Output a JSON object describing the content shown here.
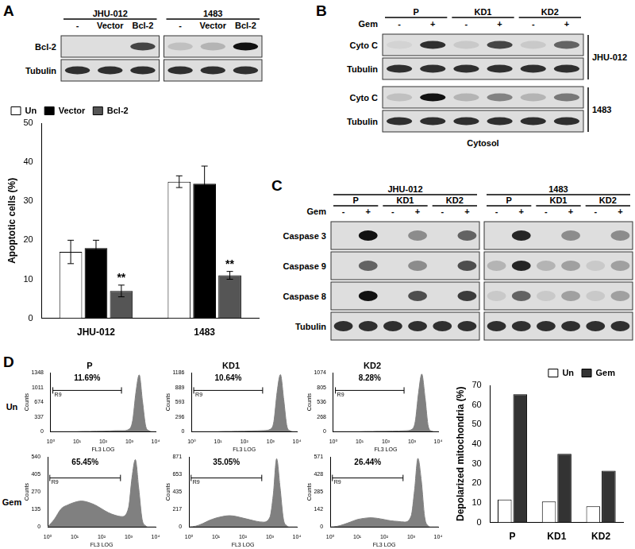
{
  "panel_labels": [
    "A",
    "B",
    "C",
    "D"
  ],
  "blots": [
    {
      "boxes": [
        3,
        3
      ],
      "header": [
        {
          "cells": [
            {
              "text": "JHU-012",
              "span": 3
            },
            {
              "text": "1483",
              "span": 3
            }
          ]
        },
        {
          "cells": [
            {
              "text": "-",
              "span": 1
            },
            {
              "text": "Vector",
              "span": 1
            },
            {
              "text": "Bcl-2",
              "span": 1
            },
            {
              "text": "-",
              "span": 1
            },
            {
              "text": "Vector",
              "span": 1
            },
            {
              "text": "Bcl-2",
              "span": 1
            }
          ]
        }
      ],
      "sections": [
        {
          "rows": [
            {
              "label": "Bcl-2",
              "intensity": [
                0,
                0,
                0.75,
                0.15,
                0.2,
                1
              ]
            },
            {
              "label": "Tubulin",
              "intensity": [
                0.85,
                0.85,
                0.85,
                0.85,
                0.85,
                0.85
              ]
            }
          ]
        }
      ]
    },
    {
      "boxes": [
        6
      ],
      "header": [
        {
          "cells": [
            {
              "text": "P",
              "span": 2
            },
            {
              "text": "KD1",
              "span": 2
            },
            {
              "text": "KD2",
              "span": 2
            }
          ]
        },
        {
          "label": "Gem",
          "cells": [
            {
              "text": "-",
              "span": 1
            },
            {
              "text": "+",
              "span": 1
            },
            {
              "text": "-",
              "span": 1
            },
            {
              "text": "+",
              "span": 1
            },
            {
              "text": "-",
              "span": 1
            },
            {
              "text": "+",
              "span": 1
            }
          ]
        }
      ],
      "sections": [
        {
          "side_label": "JHU-012",
          "rows": [
            {
              "label": "Cyto C",
              "intensity": [
                0.05,
                0.85,
                0.1,
                0.75,
                0.1,
                0.6
              ]
            },
            {
              "label": "Tubulin",
              "intensity": [
                0.85,
                0.85,
                0.85,
                0.85,
                0.85,
                0.85
              ]
            }
          ]
        },
        {
          "side_label": "1483",
          "rows": [
            {
              "label": "Cyto C",
              "intensity": [
                0.15,
                1,
                0.2,
                0.45,
                0.2,
                0.5
              ]
            },
            {
              "label": "Tubulin",
              "intensity": [
                0.85,
                0.85,
                0.85,
                0.85,
                0.85,
                0.85
              ]
            }
          ]
        }
      ],
      "footer": "Cytosol"
    },
    {
      "boxes": [
        6,
        6
      ],
      "header": [
        {
          "cells": [
            {
              "text": "JHU-012",
              "span": 6
            },
            {
              "text": "1483",
              "span": 6
            }
          ]
        },
        {
          "cells": [
            {
              "text": "P",
              "span": 2
            },
            {
              "text": "KD1",
              "span": 2
            },
            {
              "text": "KD2",
              "span": 2
            },
            {
              "text": "P",
              "span": 2
            },
            {
              "text": "KD1",
              "span": 2
            },
            {
              "text": "KD2",
              "span": 2
            }
          ]
        },
        {
          "label": "Gem",
          "cells": [
            {
              "text": "-",
              "span": 1
            },
            {
              "text": "+",
              "span": 1
            },
            {
              "text": "-",
              "span": 1
            },
            {
              "text": "+",
              "span": 1
            },
            {
              "text": "-",
              "span": 1
            },
            {
              "text": "+",
              "span": 1
            },
            {
              "text": "-",
              "span": 1
            },
            {
              "text": "+",
              "span": 1
            },
            {
              "text": "-",
              "span": 1
            },
            {
              "text": "+",
              "span": 1
            },
            {
              "text": "-",
              "span": 1
            },
            {
              "text": "+",
              "span": 1
            }
          ]
        }
      ],
      "sections": [
        {
          "rows": [
            {
              "label": "Caspase 3",
              "intensity": [
                0,
                1,
                0,
                0.4,
                0,
                0.6,
                0,
                0.9,
                0,
                0.4,
                0,
                0.4
              ]
            },
            {
              "label": "Caspase 9",
              "intensity": [
                0,
                0.6,
                0,
                0.4,
                0,
                0.7,
                0.2,
                0.9,
                0.2,
                0.3,
                0.1,
                0.3
              ]
            },
            {
              "label": "Caspase 8",
              "intensity": [
                0,
                1,
                0,
                0.7,
                0,
                0.8,
                0.1,
                0.6,
                0.1,
                0.3,
                0.1,
                0.3
              ]
            },
            {
              "label": "Tubulin",
              "intensity": [
                0.85,
                0.85,
                0.85,
                0.85,
                0.85,
                0.85,
                0.85,
                0.85,
                0.85,
                0.85,
                0.85,
                0.85
              ]
            }
          ]
        }
      ]
    }
  ],
  "flow_row_labels": [
    "Un",
    "Gem"
  ],
  "chart_data": [
    {
      "type": "bar",
      "y_label": "Apoptotic cells (%)",
      "categories": [
        "JHU-012",
        "1483"
      ],
      "series": [
        {
          "name": "Un",
          "color": "#ffffff",
          "values": [
            17,
            35
          ],
          "errors": [
            3,
            1.5
          ]
        },
        {
          "name": "Vector",
          "color": "#000000",
          "values": [
            18,
            34.5
          ],
          "errors": [
            2,
            4.5
          ]
        },
        {
          "name": "Bcl-2",
          "color": "#555555",
          "values": [
            7,
            11
          ],
          "errors": [
            1.5,
            1
          ]
        }
      ],
      "annotations": [
        {
          "text": "**",
          "category": "JHU-012",
          "series": "Bcl-2"
        },
        {
          "text": "**",
          "category": "1483",
          "series": "Bcl-2"
        }
      ],
      "ylim": [
        0,
        50
      ],
      "yticks": [
        0,
        10,
        20,
        30,
        40,
        50
      ],
      "grid": false,
      "legend": "upper left"
    },
    {
      "type": "area",
      "title": "P",
      "annotation": "11.69%",
      "x_label": "FL3 LOG",
      "y_label": "Counts",
      "log": "x",
      "grid": false,
      "color": "#808080",
      "gate": {
        "label": "R9",
        "range": [
          1.2,
          500
        ]
      },
      "x": [
        1,
        1.78,
        3.16,
        5.62,
        10,
        17.8,
        31.6,
        56.2,
        100,
        178,
        316,
        562,
        1000,
        1334,
        1778,
        2371,
        3162,
        4217,
        5623,
        7499,
        10000
      ],
      "values": [
        0,
        0,
        0,
        0,
        0,
        5,
        5,
        8,
        10,
        15,
        20,
        20,
        60,
        250,
        900,
        1300,
        700,
        120,
        20,
        0,
        0
      ],
      "xlim": [
        1,
        10000
      ],
      "xticks": [
        {
          "value": 1,
          "label": "10⁰"
        },
        {
          "value": 10,
          "label": "10¹"
        },
        {
          "value": 100,
          "label": "10²"
        },
        {
          "value": 1000,
          "label": "10³"
        },
        {
          "value": 10000,
          "label": "10⁴"
        }
      ],
      "ylim": [
        0,
        1348
      ],
      "yticks": [
        0,
        337,
        674,
        1011,
        1348
      ]
    },
    {
      "type": "area",
      "title": "KD1",
      "annotation": "10.64%",
      "x_label": "FL3 LOG",
      "y_label": "Counts",
      "log": "x",
      "grid": false,
      "color": "#808080",
      "gate": {
        "label": "R9",
        "range": [
          1.2,
          500
        ]
      },
      "x": [
        1,
        1.78,
        3.16,
        5.62,
        10,
        17.8,
        31.6,
        56.2,
        100,
        178,
        316,
        562,
        1000,
        1334,
        1778,
        2371,
        3162,
        4217,
        5623,
        7499,
        10000
      ],
      "values": [
        0,
        0,
        0,
        0,
        0,
        4,
        4,
        6,
        8,
        12,
        15,
        20,
        50,
        200,
        800,
        1150,
        650,
        100,
        15,
        0,
        0
      ],
      "xlim": [
        1,
        10000
      ],
      "xticks": [
        {
          "value": 1,
          "label": "10⁰"
        },
        {
          "value": 10,
          "label": "10¹"
        },
        {
          "value": 100,
          "label": "10²"
        },
        {
          "value": 1000,
          "label": "10³"
        },
        {
          "value": 10000,
          "label": "10⁴"
        }
      ],
      "ylim": [
        0,
        1186
      ],
      "yticks": [
        0,
        296,
        593,
        889,
        1186
      ]
    },
    {
      "type": "area",
      "title": "KD2",
      "annotation": "8.28%",
      "x_label": "FL3 LOG",
      "y_label": "Counts",
      "log": "x",
      "grid": false,
      "color": "#808080",
      "gate": {
        "label": "R9",
        "range": [
          1.2,
          500
        ]
      },
      "x": [
        1,
        1.78,
        3.16,
        5.62,
        10,
        17.8,
        31.6,
        56.2,
        100,
        178,
        316,
        562,
        1000,
        1334,
        1778,
        2371,
        3162,
        4217,
        5623,
        7499,
        10000
      ],
      "values": [
        0,
        0,
        0,
        0,
        0,
        3,
        3,
        5,
        6,
        8,
        10,
        15,
        40,
        180,
        700,
        1050,
        620,
        90,
        10,
        0,
        0
      ],
      "xlim": [
        1,
        10000
      ],
      "xticks": [
        {
          "value": 1,
          "label": "10⁰"
        },
        {
          "value": 10,
          "label": "10¹"
        },
        {
          "value": 100,
          "label": "10²"
        },
        {
          "value": 1000,
          "label": "10³"
        },
        {
          "value": 10000,
          "label": "10⁴"
        }
      ],
      "ylim": [
        0,
        1074
      ],
      "yticks": [
        0,
        268,
        536,
        805,
        1074
      ]
    },
    {
      "type": "area",
      "annotation": "65.45%",
      "x_label": "FL3 LOG",
      "y_label": "Counts",
      "log": "x",
      "grid": false,
      "color": "#808080",
      "gate": {
        "label": "R9",
        "range": [
          1.2,
          500
        ]
      },
      "x": [
        1,
        1.78,
        3.16,
        5.62,
        10,
        17.8,
        31.6,
        56.2,
        100,
        178,
        316,
        562,
        1000,
        1334,
        1778,
        2371,
        3162,
        4217,
        5623,
        7499,
        10000
      ],
      "values": [
        0,
        60,
        140,
        170,
        190,
        200,
        190,
        170,
        140,
        110,
        90,
        80,
        150,
        380,
        520,
        300,
        60,
        10,
        0,
        0,
        0
      ],
      "xlim": [
        1,
        10000
      ],
      "xticks": [
        {
          "value": 1,
          "label": "10⁰"
        },
        {
          "value": 10,
          "label": "10¹"
        },
        {
          "value": 100,
          "label": "10²"
        },
        {
          "value": 1000,
          "label": "10³"
        },
        {
          "value": 10000,
          "label": "10⁴"
        }
      ],
      "ylim": [
        0,
        540
      ],
      "yticks": [
        0,
        135,
        270,
        405,
        540
      ]
    },
    {
      "type": "area",
      "annotation": "35.05%",
      "x_label": "FL3 LOG",
      "y_label": "Counts",
      "log": "x",
      "grid": false,
      "color": "#808080",
      "gate": {
        "label": "R9",
        "range": [
          1.2,
          500
        ]
      },
      "x": [
        1,
        1.78,
        3.16,
        5.62,
        10,
        17.8,
        31.6,
        56.2,
        100,
        178,
        316,
        562,
        1000,
        1334,
        1778,
        2371,
        3162,
        4217,
        5623,
        7499,
        10000
      ],
      "values": [
        0,
        10,
        40,
        80,
        110,
        130,
        140,
        130,
        110,
        90,
        70,
        60,
        120,
        400,
        850,
        500,
        100,
        15,
        0,
        0,
        0
      ],
      "xlim": [
        1,
        10000
      ],
      "xticks": [
        {
          "value": 1,
          "label": "10⁰"
        },
        {
          "value": 10,
          "label": "10¹"
        },
        {
          "value": 100,
          "label": "10²"
        },
        {
          "value": 1000,
          "label": "10³"
        },
        {
          "value": 10000,
          "label": "10⁴"
        }
      ],
      "ylim": [
        0,
        871
      ],
      "yticks": [
        0,
        217,
        435,
        653,
        871
      ]
    },
    {
      "type": "area",
      "annotation": "26.44%",
      "x_label": "FL3 LOG",
      "y_label": "Counts",
      "log": "x",
      "grid": false,
      "color": "#808080",
      "gate": {
        "label": "R9",
        "range": [
          1.2,
          500
        ]
      },
      "x": [
        1,
        1.78,
        3.16,
        5.62,
        10,
        17.8,
        31.6,
        56.2,
        100,
        178,
        316,
        562,
        1000,
        1334,
        1778,
        2371,
        3162,
        4217,
        5623,
        7499,
        10000
      ],
      "values": [
        0,
        5,
        20,
        40,
        60,
        70,
        75,
        70,
        60,
        50,
        45,
        40,
        90,
        300,
        560,
        380,
        80,
        10,
        0,
        0,
        0
      ],
      "xlim": [
        1,
        10000
      ],
      "xticks": [
        {
          "value": 1,
          "label": "10⁰"
        },
        {
          "value": 10,
          "label": "10¹"
        },
        {
          "value": 100,
          "label": "10²"
        },
        {
          "value": 1000,
          "label": "10³"
        },
        {
          "value": 10000,
          "label": "10⁴"
        }
      ],
      "ylim": [
        0,
        571
      ],
      "yticks": [
        0,
        142,
        285,
        428,
        571
      ]
    },
    {
      "type": "bar",
      "y_label": "Depolarized mitochondria (%)",
      "categories": [
        "P",
        "KD1",
        "KD2"
      ],
      "series": [
        {
          "name": "Un",
          "color": "#ffffff",
          "values": [
            11.69,
            10.64,
            8.28
          ]
        },
        {
          "name": "Gem",
          "color": "#333333",
          "values": [
            65.45,
            35.05,
            26.44
          ]
        }
      ],
      "ylim": [
        0,
        70
      ],
      "yticks": [
        0,
        10,
        20,
        30,
        40,
        50,
        60,
        70
      ],
      "grid": false,
      "legend": "upper right"
    }
  ]
}
